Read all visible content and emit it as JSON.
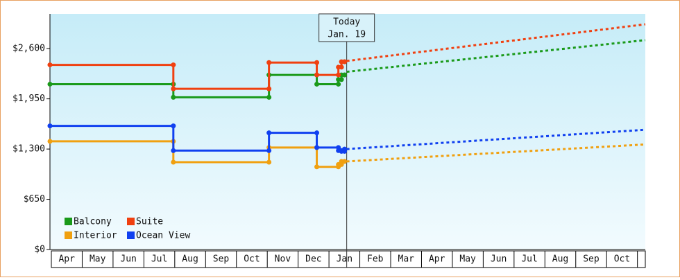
{
  "chart_data": {
    "type": "step-line",
    "annotation": {
      "title": "Today",
      "date": "Jan. 19",
      "x": 9.62
    },
    "categories": [
      "Apr",
      "May",
      "Jun",
      "Jul",
      "Aug",
      "Sep",
      "Oct",
      "Nov",
      "Dec",
      "Jan",
      "Feb",
      "Mar",
      "Apr",
      "May",
      "Jun",
      "Jul",
      "Aug",
      "Sep",
      "Oct"
    ],
    "xlim": [
      0,
      19.3
    ],
    "ylim": [
      0,
      3050
    ],
    "yticks": [
      {
        "value": 0,
        "label": "$0"
      },
      {
        "value": 650,
        "label": "$650"
      },
      {
        "value": 1300,
        "label": "$1,300"
      },
      {
        "value": 1950,
        "label": "$1,950"
      },
      {
        "value": 2600,
        "label": "$2,600"
      }
    ],
    "series": [
      {
        "name": "Balcony",
        "color": "#1a9a1a",
        "x": [
          0,
          4.0,
          7.1,
          8.65,
          9.35,
          9.45,
          9.55
        ],
        "values": [
          2140,
          1970,
          2260,
          2140,
          2200,
          2260,
          2260
        ],
        "forecast_x": [
          9.62,
          19.3
        ],
        "forecast_values": [
          2300,
          2710
        ]
      },
      {
        "name": "Suite",
        "color": "#f04010",
        "x": [
          0,
          4.0,
          7.1,
          8.65,
          9.35,
          9.45,
          9.55
        ],
        "values": [
          2390,
          2080,
          2420,
          2260,
          2360,
          2430,
          2430
        ],
        "forecast_x": [
          9.62,
          19.3
        ],
        "forecast_values": [
          2440,
          2915
        ]
      },
      {
        "name": "Interior",
        "color": "#f0a010",
        "x": [
          0,
          4.0,
          7.1,
          8.65,
          9.35,
          9.45,
          9.55
        ],
        "values": [
          1400,
          1130,
          1320,
          1070,
          1100,
          1140,
          1140
        ],
        "forecast_x": [
          9.62,
          19.3
        ],
        "forecast_values": [
          1140,
          1360
        ]
      },
      {
        "name": "Ocean View",
        "color": "#1040f0",
        "x": [
          0,
          4.0,
          7.1,
          8.65,
          9.35,
          9.45,
          9.55
        ],
        "values": [
          1600,
          1280,
          1510,
          1320,
          1280,
          1270,
          1300
        ],
        "forecast_x": [
          9.62,
          19.3
        ],
        "forecast_values": [
          1300,
          1550
        ]
      }
    ]
  }
}
